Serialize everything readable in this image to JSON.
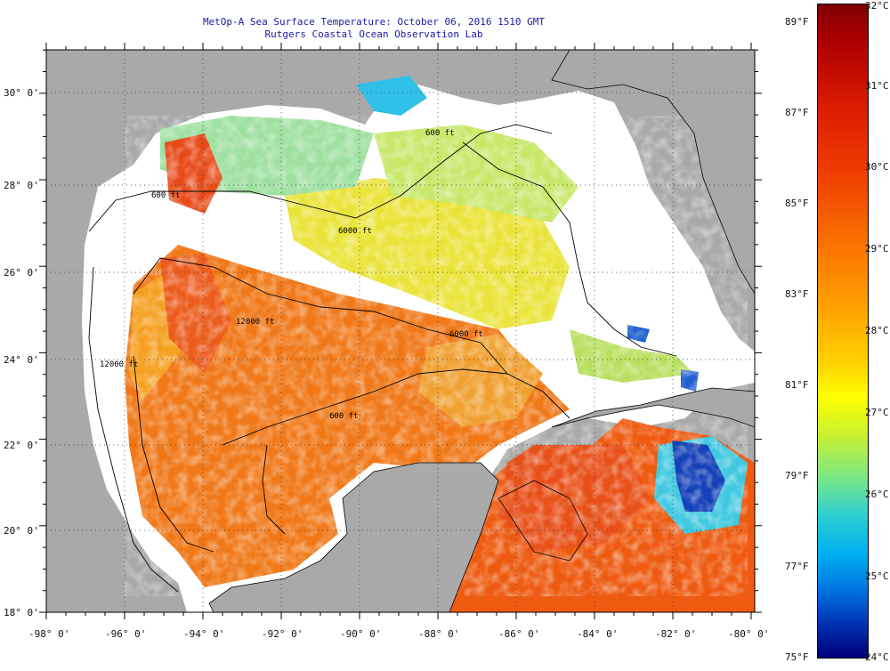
{
  "header": {
    "title": "MetOp-A Sea Surface Temperature:  October 06, 2016 1510 GMT",
    "subtitle": "Rutgers Coastal Ocean Observation Lab"
  },
  "map": {
    "lon_range": [
      -98,
      -80
    ],
    "lat_range": [
      18,
      31
    ],
    "lon_labels": [
      "-98° 0'",
      "-96° 0'",
      "-94° 0'",
      "-92° 0'",
      "-90° 0'",
      "-88° 0'",
      "-86° 0'",
      "-84° 0'",
      "-82° 0'",
      "-80° 0'"
    ],
    "lat_labels": [
      "30° 0'",
      "28° 0'",
      "26° 0'",
      "24° 0'",
      "22° 0'",
      "20° 0'",
      "18° 0'"
    ],
    "contour_labels": [
      "600 ft",
      "600 ft",
      "6000 ft",
      "6000 ft",
      "12000 ft",
      "12000 ft",
      "600 ft"
    ],
    "colors": {
      "land": "#a9a9a9",
      "cloud": "#ffffff",
      "frame": "#000000"
    }
  },
  "colorbar": {
    "fahrenheit_labels": [
      "89°F",
      "87°F",
      "85°F",
      "83°F",
      "81°F",
      "79°F",
      "77°F",
      "75°F"
    ],
    "celsius_labels": [
      "32°C",
      "31°C",
      "30°C",
      "29°C",
      "28°C",
      "27°C",
      "26°C",
      "25°C",
      "24°C"
    ],
    "celsius_range": [
      24,
      32
    ]
  }
}
